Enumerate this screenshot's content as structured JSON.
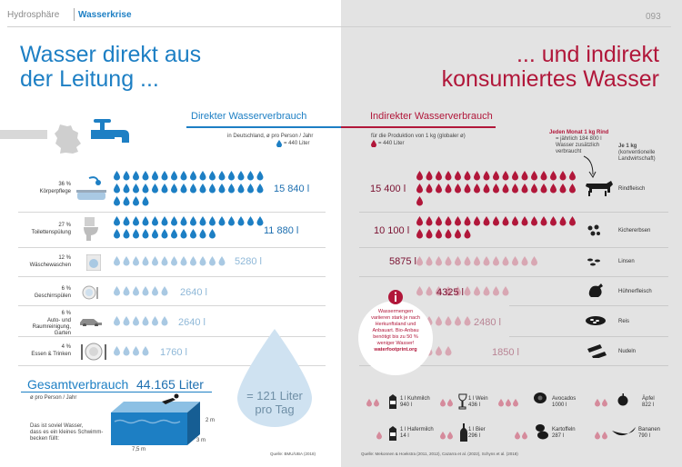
{
  "header": {
    "crumb": "Hydrosphäre",
    "section": "Wasserkrise",
    "page_number": "093"
  },
  "title_left": [
    "Wasser direkt aus",
    "der Leitung ..."
  ],
  "title_right": [
    "... und indirekt",
    "konsumiertes Wasser"
  ],
  "direct": {
    "heading": "Direkter Wasserverbrauch",
    "note_line1": "in Deutschland, ø pro Person / Jahr",
    "note_line2": "= 440 Liter",
    "rows": [
      {
        "percent": "36 %",
        "label": "Körperpflege",
        "value": "15 840",
        "drops": 36
      },
      {
        "percent": "27 %",
        "label": "Toilettenspülung",
        "value": "11 880",
        "drops": 27
      },
      {
        "percent": "12 %",
        "label": "Wäschewaschen",
        "value": "5280",
        "drops": 12
      },
      {
        "percent": "6 %",
        "label": "Geschirrspülen",
        "value": "2640",
        "drops": 6
      },
      {
        "percent": "6 %",
        "label": "Auto- und Raumreinigung, Garten",
        "value": "2640",
        "drops": 6
      },
      {
        "percent": "4 %",
        "label": "Essen & Trinken",
        "value": "1760",
        "drops": 4
      }
    ]
  },
  "indirect": {
    "heading": "Indirekter Wasserverbrauch",
    "note_line1": "für die Produktion von 1 kg (globaler ø)",
    "note_line2": "= 440 Liter",
    "per_kg_line1": "Je 1 kg",
    "per_kg_line2": "(konventionelle Landwirtschaft)",
    "beef_note": [
      "Jeden Monat 1 kg Rind",
      "= jährlich 184 800 l",
      "Wasser zusätzlich",
      "verbraucht"
    ],
    "rows": [
      {
        "value": "15 400",
        "food": "Rindfleisch",
        "drops": 35
      },
      {
        "value": "10 100",
        "food": "Kichererbsen",
        "drops": 23
      },
      {
        "value": "5875",
        "food": "Linsen",
        "drops": 13
      },
      {
        "value": "4325",
        "food": "Hühnerfleisch",
        "drops": 10
      },
      {
        "value": "2480",
        "food": "Reis",
        "drops": 6
      },
      {
        "value": "1850",
        "food": "Nudeln",
        "drops": 4
      }
    ],
    "info_box": [
      "Wassermengen",
      "variieren stark je nach",
      "Herkunftsland und",
      "Anbauart. Bio-Anbau",
      "benötigt bis zu 50 %",
      "weniger Wasser!",
      "waterfootprint.org"
    ],
    "products": [
      {
        "name": "1 l Kuhmilch",
        "value": "940 l"
      },
      {
        "name": "1 l Wein",
        "value": "436 l"
      },
      {
        "name": "Avocados",
        "value": "1000 l"
      },
      {
        "name": "Äpfel",
        "value": "822 l"
      },
      {
        "name": "1 l Hafermilch",
        "value": "14 l"
      },
      {
        "name": "1 l Bier",
        "value": "296 l"
      },
      {
        "name": "Kartoffeln",
        "value": "287 l"
      },
      {
        "name": "Bananen",
        "value": "790 l"
      }
    ]
  },
  "total": {
    "heading": "Gesamtverbrauch",
    "subheading": "ø pro Person / Jahr",
    "value": "44.165 Liter",
    "pool_text": [
      "Das ist soviel Wasser,",
      "dass es ein kleines Schwimm-",
      "becken füllt:"
    ],
    "dim_depth": "2 m",
    "dim_width": "3 m",
    "dim_length": "7,5 m",
    "per_day_line1": "= 121 Liter",
    "per_day_line2": "pro Tag"
  },
  "sources": {
    "left": "Quelle: BMU/UBA (2018)",
    "right": "Quelle: Mekonnen & Hoekstra (2011, 2012), Cazarra et al. (2022), Schyns et al. (2018)"
  },
  "colors": {
    "blue": "#1d7fc4",
    "red": "#b1173a",
    "light_blue": "#a9c9e3",
    "light_red": "#d8a7b3",
    "grey_panel": "#e3e3e3"
  },
  "icons": [
    "shower-bathtub-icon",
    "toilet-icon",
    "washing-machine-icon",
    "dishes-icon",
    "car-icon",
    "plate-cutlery-icon",
    "cow-icon",
    "chickpeas-icon",
    "lentils-icon",
    "chicken-icon",
    "rice-icon",
    "pasta-icon",
    "faucet-icon",
    "germany-map-icon",
    "info-icon",
    "swimming-pool-icon",
    "swimmer-icon"
  ]
}
